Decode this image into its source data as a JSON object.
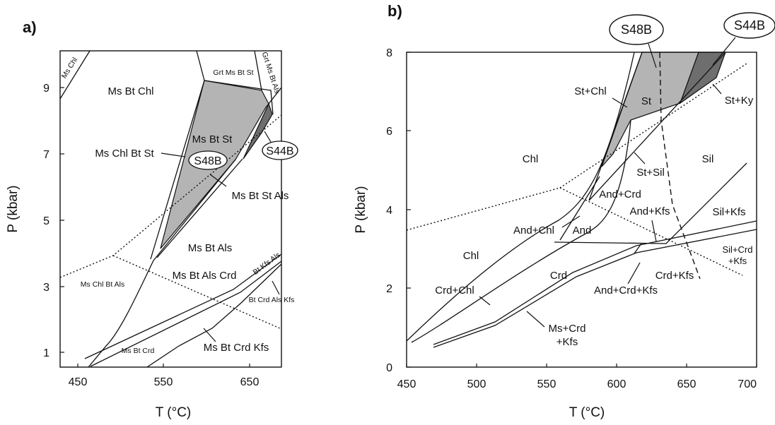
{
  "colors": {
    "light_fill": "#b4b4b4",
    "dark_fill": "#6e6e6e",
    "line": "#111111",
    "background": "#ffffff"
  },
  "panel_a": {
    "panel_label": "a)",
    "x_ticks": [
      "450",
      "550",
      "650"
    ],
    "y_ticks": [
      "1",
      "3",
      "5",
      "7",
      "9"
    ],
    "x_axis_label": "T (°C)",
    "y_axis_label": "P (kbar)",
    "fields": {
      "ms_chl": "Ms Chl",
      "ms_bt_chl": "Ms Bt Chl",
      "grt_ms_bt_st": "Grt Ms Bt St",
      "grt_ms_bt_als": "Grt Ms Bt Als",
      "ms_bt_st": "Ms Bt St",
      "ms_chl_bt_st": "Ms Chl Bt St",
      "ms_bt_st_als": "Ms Bt St Als",
      "ms_bt_als": "Ms Bt Als",
      "ms_bt_als_crd": "Ms Bt Als Crd",
      "bt_kfs_als": "Bt Kfs Als",
      "ms_chl_bt_als": "Ms Chl Bt Als",
      "bt_crd_als_kfs": "Bt Crd Als Kfs",
      "ms_bt_crd": "Ms Bt Crd",
      "ms_bt_crd_kfs": "Ms Bt Crd Kfs"
    },
    "samples": [
      "S48B",
      "S44B"
    ]
  },
  "panel_b": {
    "panel_label": "b)",
    "x_ticks": [
      "450",
      "500",
      "550",
      "600",
      "650",
      "700"
    ],
    "y_ticks": [
      "0",
      "2",
      "4",
      "6",
      "8"
    ],
    "x_axis_label": "T (°C)",
    "y_axis_label": "P (kbar)",
    "fields": {
      "st_chl": "St+Chl",
      "st": "St",
      "st_ky": "St+Ky",
      "chl_upper": "Chl",
      "st_sil": "St+Sil",
      "sil": "Sil",
      "and_crd": "And+Crd",
      "and_kfs": "And+Kfs",
      "sil_kfs": "Sil+Kfs",
      "and_chl": "And+Chl",
      "and": "And",
      "chl_lower": "Chl",
      "sil_crd_kfs_1": "Sil+Crd",
      "sil_crd_kfs_2": "+Kfs",
      "crd": "Crd",
      "crd_kfs": "Crd+Kfs",
      "crd_chl": "Crd+Chl",
      "and_crd_kfs": "And+Crd+Kfs",
      "ms_crd_kfs_1": "Ms+Crd",
      "ms_crd_kfs_2": "+Kfs"
    },
    "samples": [
      "S48B",
      "S44B"
    ]
  }
}
